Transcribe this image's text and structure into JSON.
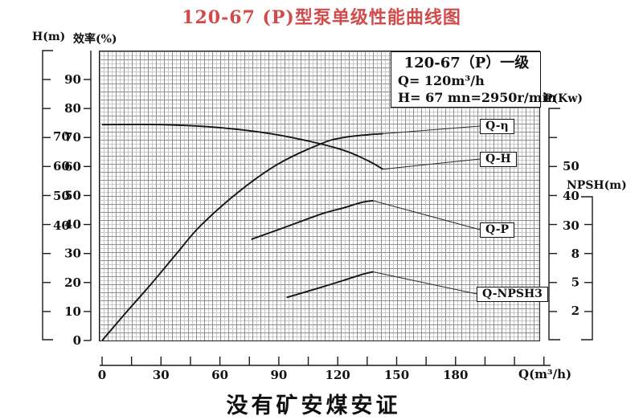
{
  "page": {
    "title": "120-67 (P)型泵单级性能曲线图",
    "bottom_note": "没有矿安煤安证"
  },
  "colors": {
    "title_red": "#d24b4b",
    "curve": "#151515"
  },
  "info_box": {
    "line1": "120-67（P）一级",
    "q_line": "Q= 120m³/h",
    "h_line": "H= 67 m",
    "n_line": "n=2950r/min"
  },
  "axes": {
    "left_h": {
      "name": "H(m)",
      "labels": [
        70,
        60,
        50,
        40
      ]
    },
    "left_eta": {
      "name": "效率(%)",
      "labels": [
        90,
        80,
        70,
        60,
        50,
        40,
        30,
        20,
        10,
        0
      ]
    },
    "right_p": {
      "name": "P(Kw)",
      "labels": [
        50,
        40,
        30
      ]
    },
    "right_npsh": {
      "name": "NPSH(m)",
      "labels": [
        8,
        5,
        2
      ]
    },
    "x": {
      "name": "Q(m³/h)",
      "labels": [
        0,
        30,
        60,
        90,
        120,
        150,
        180
      ]
    }
  },
  "curve_labels": {
    "eta": "Q-η",
    "h": "Q-H",
    "p": "Q-P",
    "npsh": "Q-NPSH3"
  },
  "chart_data": {
    "type": "line",
    "title": "120-67 (P)型泵单级性能曲线图",
    "xlabel": "Q(m³/h)",
    "x_range": [
      0,
      225
    ],
    "x_tick_step_labeled": 30,
    "x_tick_step_minor": 15,
    "grid": "fine graph paper",
    "legend_position": "boxed labels at right edge of plot connected by leader lines",
    "axis_ranges": {
      "eta_percent": [
        0,
        100
      ],
      "H_m": [
        40,
        74
      ],
      "P_Kw": [
        20,
        55
      ],
      "NPSH_m": [
        2,
        11
      ]
    },
    "series": [
      {
        "name": "Q-H",
        "axis": "H",
        "x": [
          0,
          30,
          60,
          90,
          120,
          135,
          143
        ],
        "y": [
          74,
          74,
          73,
          70.5,
          66,
          62,
          59
        ]
      },
      {
        "name": "Q-η",
        "axis": "eta",
        "x": [
          0,
          12,
          25,
          38,
          50,
          70,
          90,
          112,
          123,
          136,
          143
        ],
        "y": [
          0,
          9.5,
          19.5,
          30,
          39.5,
          51.5,
          61,
          68,
          70,
          71,
          71.3
        ]
      },
      {
        "name": "Q-P",
        "axis": "P",
        "x": [
          76,
          92,
          112,
          123,
          132,
          138
        ],
        "y": [
          25.4,
          29.2,
          34,
          36,
          37.8,
          38.4
        ]
      },
      {
        "name": "Q-NPSH3",
        "axis": "NPSH",
        "x": [
          94,
          112,
          123,
          132,
          138
        ],
        "y": [
          3.4,
          4.5,
          5.2,
          5.8,
          6.1
        ]
      }
    ],
    "rated_point_note": "Q= 120m³/h, H= 67 m, n=2950r/min"
  }
}
